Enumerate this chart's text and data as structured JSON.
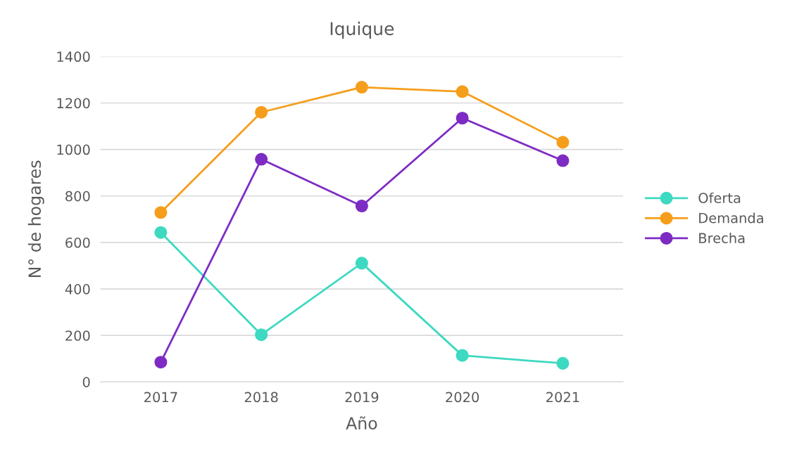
{
  "chart_data": {
    "type": "line",
    "title": "Iquique",
    "xlabel": "Año",
    "ylabel": "N° de hogares",
    "categories": [
      "2017",
      "2018",
      "2019",
      "2020",
      "2021"
    ],
    "series": [
      {
        "name": "Oferta",
        "color": "#3dd9c1",
        "values": [
          643,
          203,
          511,
          114,
          80
        ]
      },
      {
        "name": "Demanda",
        "color": "#f59e1b",
        "values": [
          729,
          1160,
          1268,
          1249,
          1031
        ]
      },
      {
        "name": "Brecha",
        "color": "#7e2bc4",
        "values": [
          85,
          958,
          757,
          1135,
          952
        ]
      }
    ],
    "ylim": [
      0,
      1400
    ],
    "yticks": [
      0,
      200,
      400,
      600,
      800,
      1000,
      1200,
      1400
    ],
    "grid": "y",
    "legend": "right",
    "marker": "circle",
    "line_style": "solid"
  }
}
